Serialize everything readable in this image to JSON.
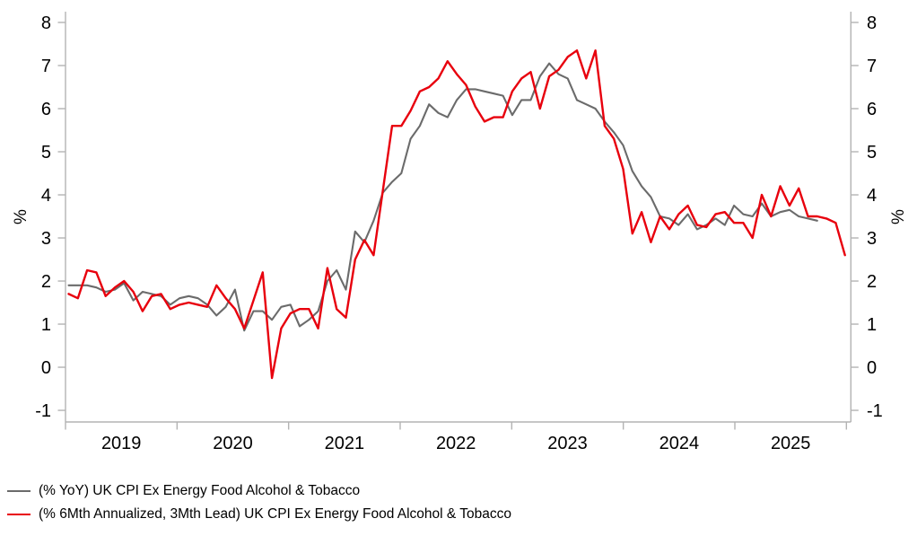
{
  "chart_data": {
    "type": "line",
    "title": "",
    "grid": false,
    "legend_position": "bottom-left",
    "x_axis": {
      "unit": "month",
      "start": "2019-01",
      "year_tick_labels": [
        "2019",
        "2020",
        "2021",
        "2022",
        "2023",
        "2024",
        "2025"
      ]
    },
    "y_axis": {
      "label": "%",
      "tick_values": [
        8,
        7,
        6,
        5,
        4,
        3,
        2,
        1,
        0,
        -1
      ],
      "tick_labels": [
        "8",
        "7",
        "6",
        "5",
        "4",
        "3",
        "2",
        "1",
        "0",
        "-1"
      ],
      "range": [
        -1.27,
        8.25
      ],
      "mirrored_right_axis": true,
      "axis_color": "#b3b3b3",
      "text_color": "#000000"
    },
    "series": [
      {
        "name": "(% YoY) UK CPI Ex Energy Food Alcohol & Tobacco",
        "color": "#6b6b6b",
        "start": "2019-01",
        "frequency": "monthly",
        "values": [
          1.9,
          1.9,
          1.9,
          1.85,
          1.75,
          1.8,
          1.95,
          1.55,
          1.75,
          1.7,
          1.65,
          1.45,
          1.6,
          1.65,
          1.6,
          1.45,
          1.2,
          1.4,
          1.8,
          0.85,
          1.3,
          1.3,
          1.1,
          1.4,
          1.45,
          0.95,
          1.1,
          1.3,
          2.0,
          2.25,
          1.8,
          3.15,
          2.9,
          3.4,
          4.05,
          4.3,
          4.5,
          5.3,
          5.6,
          6.1,
          5.9,
          5.8,
          6.2,
          6.45,
          6.45,
          6.4,
          6.35,
          6.3,
          5.85,
          6.2,
          6.2,
          6.75,
          7.05,
          6.8,
          6.7,
          6.2,
          6.1,
          6.0,
          5.7,
          5.45,
          5.15,
          4.55,
          4.2,
          3.95,
          3.5,
          3.45,
          3.3,
          3.55,
          3.2,
          3.3,
          3.45,
          3.3,
          3.75,
          3.55,
          3.5,
          3.8,
          3.5,
          3.6,
          3.65,
          3.5,
          3.45,
          3.4
        ]
      },
      {
        "name": "(% 6Mth Annualized, 3Mth Lead) UK CPI Ex Energy Food Alcohol & Tobacco",
        "color": "#e8000d",
        "start": "2019-01",
        "frequency": "monthly",
        "values": [
          1.7,
          1.6,
          2.25,
          2.2,
          1.65,
          1.85,
          2.0,
          1.75,
          1.3,
          1.65,
          1.7,
          1.35,
          1.45,
          1.5,
          1.45,
          1.4,
          1.9,
          1.6,
          1.35,
          0.9,
          1.55,
          2.2,
          -0.25,
          0.9,
          1.25,
          1.35,
          1.35,
          0.9,
          2.3,
          1.35,
          1.15,
          2.5,
          2.95,
          2.6,
          4.1,
          5.6,
          5.6,
          5.95,
          6.4,
          6.5,
          6.7,
          7.1,
          6.8,
          6.55,
          6.05,
          5.7,
          5.8,
          5.8,
          6.4,
          6.7,
          6.85,
          6.0,
          6.75,
          6.9,
          7.2,
          7.35,
          6.7,
          7.35,
          5.6,
          5.3,
          4.6,
          3.1,
          3.6,
          2.9,
          3.5,
          3.2,
          3.55,
          3.75,
          3.3,
          3.25,
          3.55,
          3.6,
          3.35,
          3.35,
          3.0,
          4.0,
          3.5,
          4.2,
          3.75,
          4.15,
          3.5,
          3.5,
          3.45,
          3.35,
          2.6
        ]
      }
    ]
  }
}
